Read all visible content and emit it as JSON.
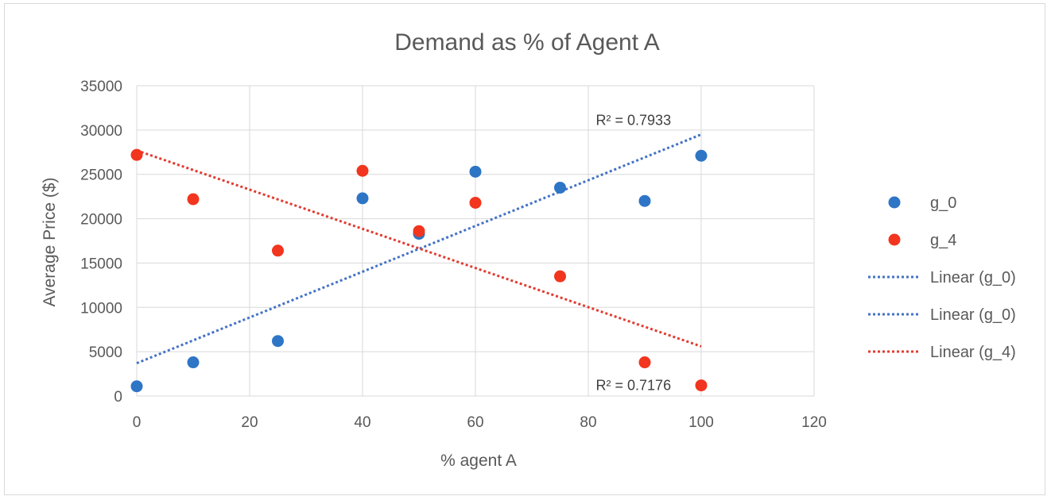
{
  "chart_data": {
    "type": "scatter",
    "title": "Demand as % of Agent A",
    "xlabel": "% agent A",
    "ylabel": "Average Price ($)",
    "xlim": [
      0,
      120
    ],
    "ylim": [
      0,
      35000
    ],
    "x_ticks": [
      0,
      20,
      40,
      60,
      80,
      100,
      120
    ],
    "y_ticks": [
      0,
      5000,
      10000,
      15000,
      20000,
      25000,
      30000,
      35000
    ],
    "grid": true,
    "legend_position": "right",
    "series": [
      {
        "name": "g_0",
        "color": "#2e75c6",
        "x": [
          0,
          10,
          25,
          40,
          50,
          60,
          75,
          90,
          100
        ],
        "y": [
          1100,
          3800,
          6200,
          22300,
          18300,
          25300,
          23500,
          22000,
          27100
        ]
      },
      {
        "name": "g_4",
        "color": "#f2351e",
        "x": [
          0,
          10,
          25,
          40,
          50,
          60,
          75,
          90,
          100
        ],
        "y": [
          27200,
          22200,
          16400,
          25400,
          18600,
          21800,
          13500,
          3800,
          1200
        ]
      }
    ],
    "trendlines": [
      {
        "name": "Linear (g_0)",
        "color": "#4472c4",
        "x": [
          0,
          100
        ],
        "y": [
          3700,
          29500
        ],
        "r2_label": "R² = 0.7933",
        "show_in_plot": true
      },
      {
        "name": "Linear (g_0)",
        "color": "#4472c4",
        "x": [
          0,
          100
        ],
        "y": [
          3700,
          29500
        ],
        "r2_label": "",
        "show_in_plot": false
      },
      {
        "name": "Linear (g_4)",
        "color": "#e03c31",
        "x": [
          0,
          100
        ],
        "y": [
          27700,
          5600
        ],
        "r2_label": "R² = 0.7176",
        "show_in_plot": true
      }
    ],
    "annotations": [
      {
        "text": "R² = 0.7933",
        "x": 88,
        "y": 31100
      },
      {
        "text": "R² = 0.7176",
        "x": 88,
        "y": 1200
      }
    ]
  }
}
